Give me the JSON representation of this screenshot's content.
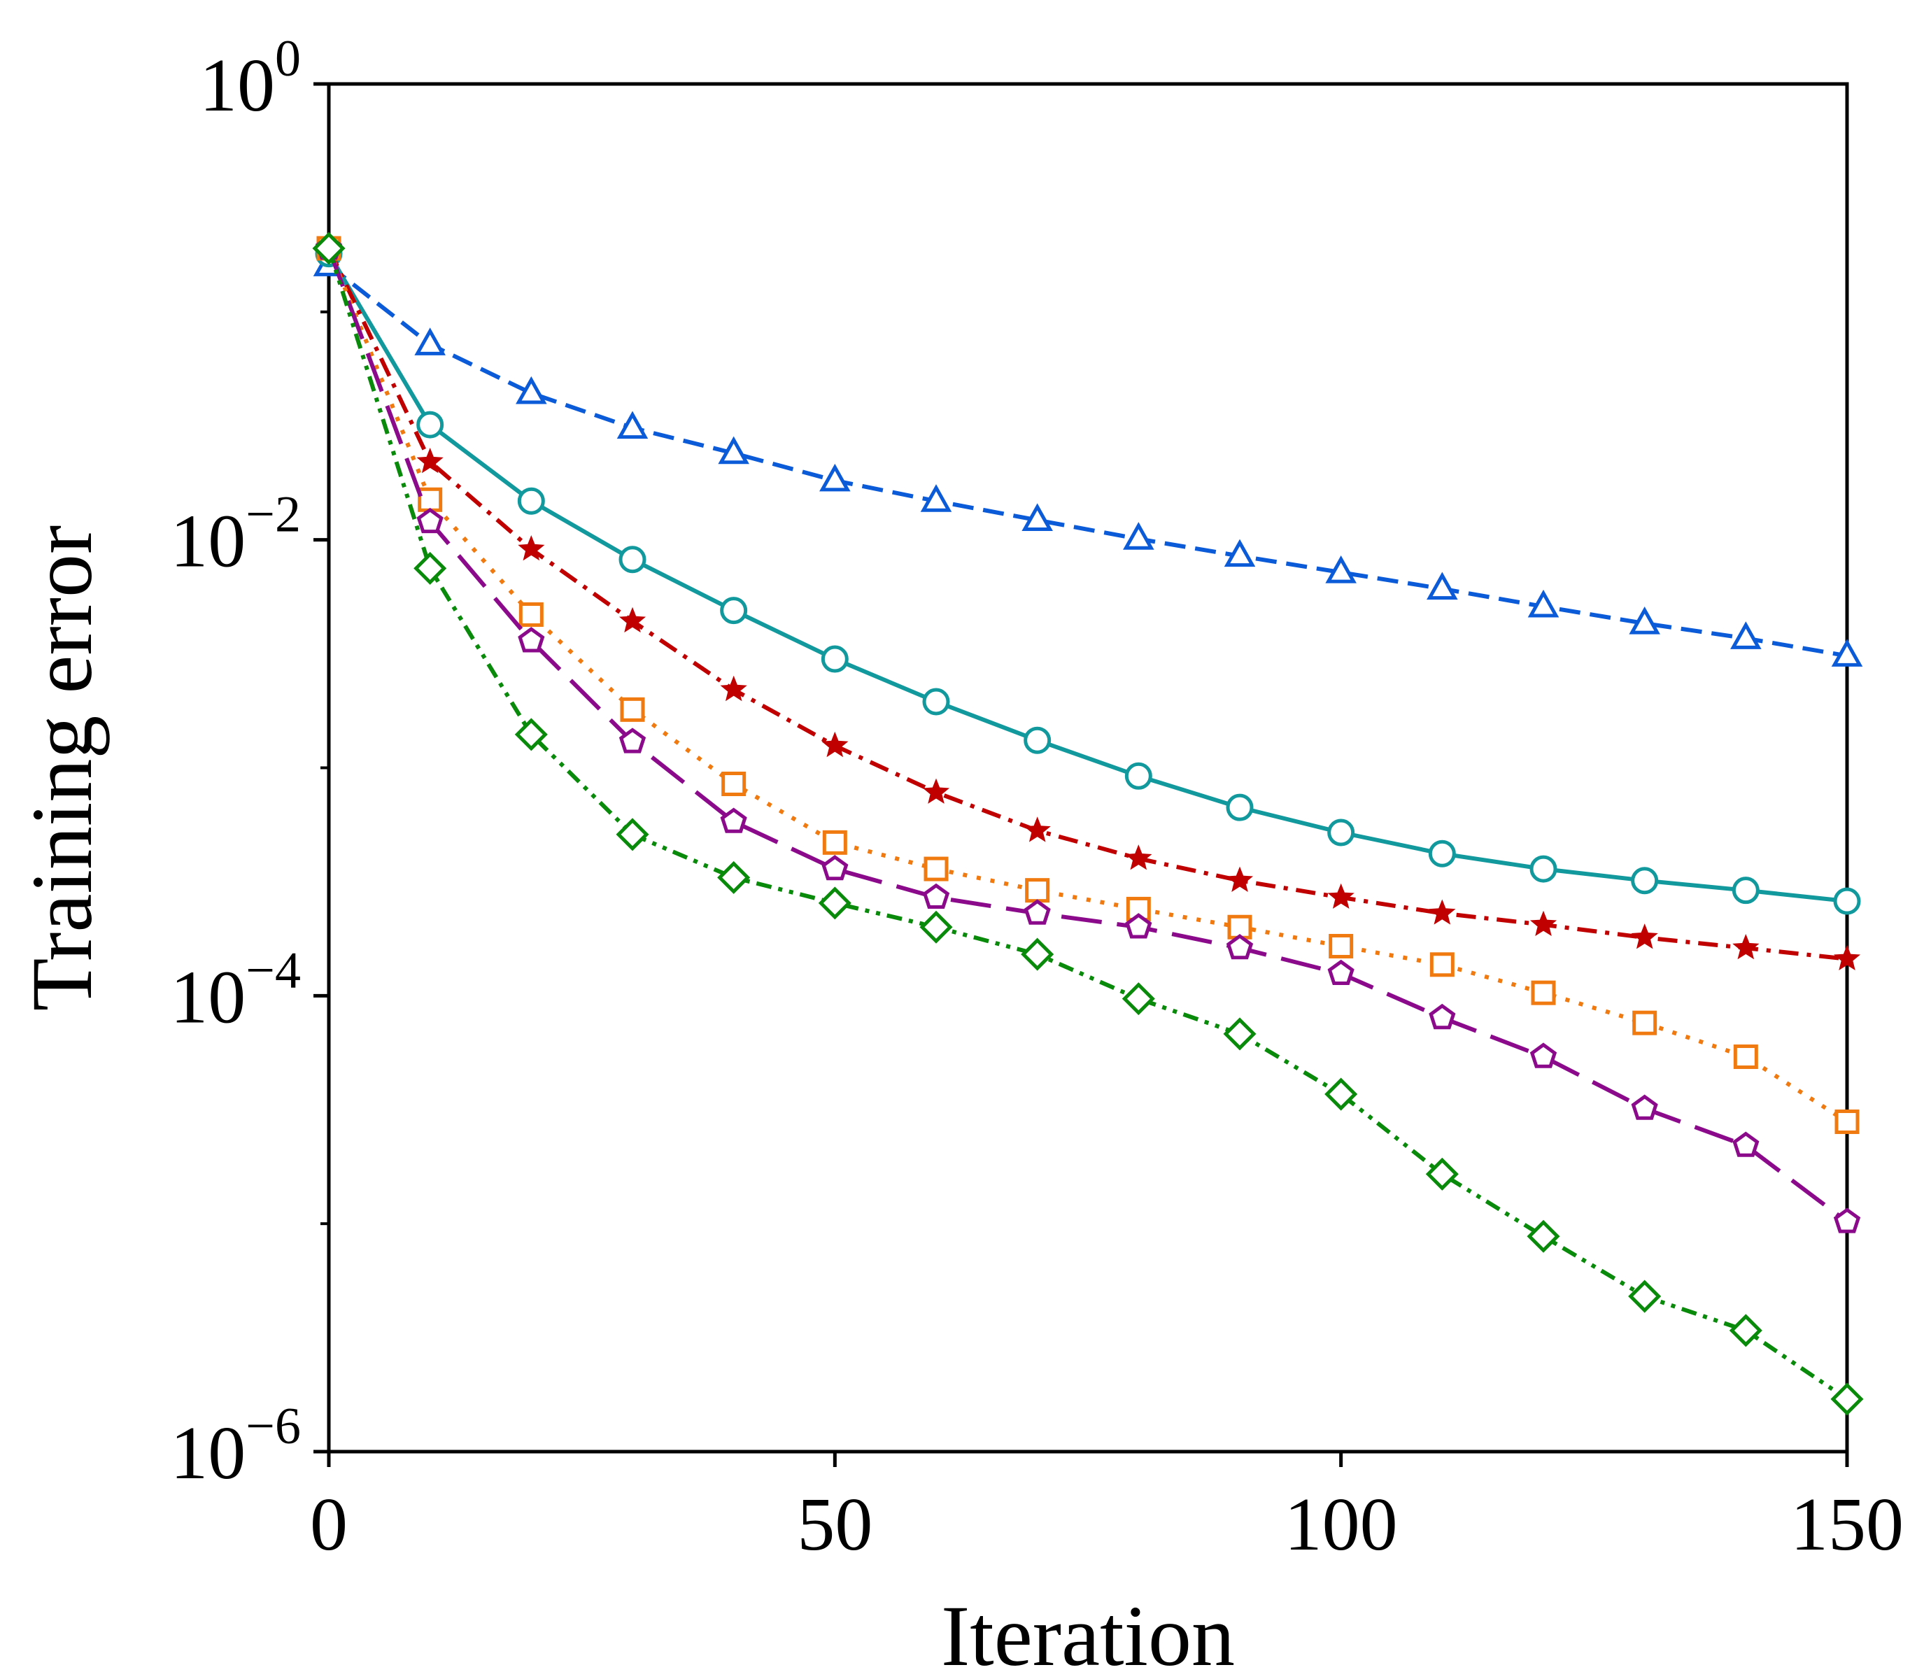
{
  "chart_data": {
    "type": "line",
    "title": "",
    "xlabel": "Iteration",
    "ylabel": "Training error",
    "yscale": "log",
    "xlim": [
      0,
      150
    ],
    "ylim": [
      1e-06,
      1
    ],
    "xticks": [
      {
        "value": 0,
        "label": "0"
      },
      {
        "value": 50,
        "label": "50"
      },
      {
        "value": 100,
        "label": "100"
      },
      {
        "value": 150,
        "label": "150"
      }
    ],
    "yticks": [
      {
        "value": 1,
        "base": "10",
        "exp": "0"
      },
      {
        "value": 0.01,
        "base": "10",
        "exp": "−2"
      },
      {
        "value": 0.0001,
        "base": "10",
        "exp": "−4"
      },
      {
        "value": 1e-06,
        "base": "10",
        "exp": "−6"
      }
    ],
    "grid": false,
    "x": [
      0,
      10,
      20,
      30,
      40,
      50,
      60,
      70,
      80,
      90,
      100,
      110,
      120,
      130,
      140,
      150
    ],
    "series": [
      {
        "name": "series-triangle",
        "color": "#0b5ad8",
        "marker": "triangle",
        "dash": "dashed",
        "values": [
          0.16,
          0.072,
          0.044,
          0.031,
          0.024,
          0.0182,
          0.0148,
          0.0122,
          0.0101,
          0.0085,
          0.0072,
          0.0061,
          0.0051,
          0.0043,
          0.0037,
          0.0031
        ]
      },
      {
        "name": "series-circle",
        "color": "#11999e",
        "marker": "circle",
        "dash": "solid",
        "values": [
          0.18,
          0.032,
          0.0148,
          0.0082,
          0.0049,
          0.003,
          0.00195,
          0.00132,
          0.00092,
          0.00067,
          0.00052,
          0.00042,
          0.00036,
          0.00032,
          0.00029,
          0.00026
        ]
      },
      {
        "name": "series-star",
        "color": "#c00000",
        "marker": "star",
        "dash": "dashdot",
        "values": [
          0.19,
          0.022,
          0.0091,
          0.0044,
          0.0022,
          0.00125,
          0.00078,
          0.00053,
          0.0004,
          0.00032,
          0.00027,
          0.00023,
          0.000205,
          0.00018,
          0.000162,
          0.000145
        ]
      },
      {
        "name": "series-square",
        "color": "#f07a10",
        "marker": "square",
        "dash": "dotted",
        "values": [
          0.19,
          0.015,
          0.0047,
          0.0018,
          0.00085,
          0.00047,
          0.00036,
          0.00029,
          0.00024,
          0.0002,
          0.000165,
          0.000137,
          0.000103,
          7.6e-05,
          5.4e-05,
          2.8e-05
        ]
      },
      {
        "name": "series-pentagon",
        "color": "#8b0a8b",
        "marker": "pentagon",
        "dash": "longdash",
        "values": [
          0.19,
          0.012,
          0.0036,
          0.0013,
          0.00058,
          0.00036,
          0.00027,
          0.00023,
          0.0002,
          0.000162,
          0.000125,
          8e-05,
          5.4e-05,
          3.2e-05,
          2.2e-05,
          1.02e-05
        ]
      },
      {
        "name": "series-diamond",
        "color": "#0a8a0a",
        "marker": "diamond",
        "dash": "dashdotdot",
        "values": [
          0.19,
          0.0075,
          0.0014,
          0.00051,
          0.00033,
          0.000255,
          0.0002,
          0.000152,
          9.7e-05,
          6.8e-05,
          3.7e-05,
          1.65e-05,
          8.8e-06,
          4.8e-06,
          3.4e-06,
          1.7e-06
        ]
      }
    ]
  }
}
